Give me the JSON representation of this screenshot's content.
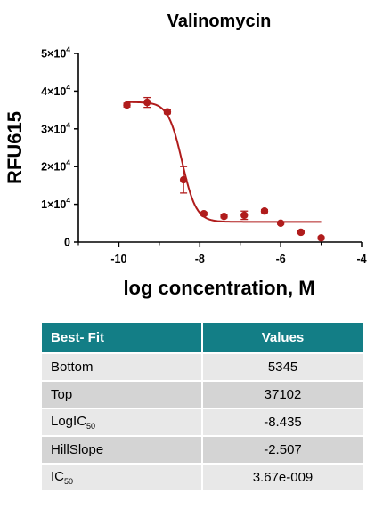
{
  "chart_data": {
    "type": "scatter",
    "title": "Valinomycin",
    "xlabel": "log concentration, M",
    "ylabel": "RFU615",
    "xlim": [
      -11,
      -4
    ],
    "ylim": [
      0,
      50000
    ],
    "x_ticks": [
      -10,
      -8,
      -6,
      -4
    ],
    "x_tick_labels": [
      "-10",
      "-8",
      "-6",
      "-4"
    ],
    "y_ticks": [
      0,
      10000,
      20000,
      30000,
      40000,
      50000
    ],
    "y_tick_labels": [
      {
        "mantissa": "0",
        "exp": ""
      },
      {
        "mantissa": "1×10",
        "exp": "4"
      },
      {
        "mantissa": "2×10",
        "exp": "4"
      },
      {
        "mantissa": "3×10",
        "exp": "4"
      },
      {
        "mantissa": "4×10",
        "exp": "4"
      },
      {
        "mantissa": "5×10",
        "exp": "4"
      }
    ],
    "series": [
      {
        "points": [
          {
            "x": -9.8,
            "y": 36300,
            "err": 500
          },
          {
            "x": -9.3,
            "y": 37000,
            "err": 1300
          },
          {
            "x": -8.8,
            "y": 34500,
            "err": 500
          },
          {
            "x": -8.4,
            "y": 16500,
            "err": 3500
          },
          {
            "x": -7.9,
            "y": 7500,
            "err": 400
          },
          {
            "x": -7.4,
            "y": 6800,
            "err": 400
          },
          {
            "x": -6.9,
            "y": 7100,
            "err": 1100
          },
          {
            "x": -6.4,
            "y": 8200,
            "err": 400
          },
          {
            "x": -6.0,
            "y": 5000,
            "err": 300
          },
          {
            "x": -5.5,
            "y": 2600,
            "err": 300
          },
          {
            "x": -5.0,
            "y": 1100,
            "err": 300
          }
        ],
        "color": "#b01c1c"
      }
    ],
    "fit": {
      "model": "four-parameter logistic",
      "bottom": 5345,
      "top": 37102,
      "logIC50": -8.435,
      "hillslope": -2.507,
      "x_range": [
        -9.8,
        -5.0
      ],
      "color": "#b01c1c"
    },
    "grid": false,
    "legend": "none"
  },
  "table": {
    "headers": [
      "Best- Fit",
      "Values"
    ],
    "rows": [
      {
        "label": "Bottom",
        "sub": "",
        "value": "5345"
      },
      {
        "label": "Top",
        "sub": "",
        "value": "37102"
      },
      {
        "label": "LogIC",
        "sub": "50",
        "value": "-8.435"
      },
      {
        "label": "HillSlope",
        "sub": "",
        "value": "-2.507"
      },
      {
        "label": "IC",
        "sub": "50",
        "value": "3.67e-009"
      }
    ]
  }
}
